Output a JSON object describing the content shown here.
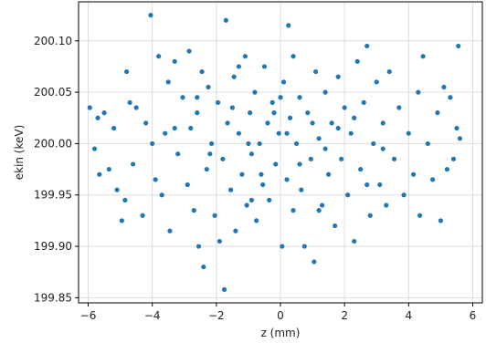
{
  "chart_data": {
    "type": "scatter",
    "title": "",
    "xlabel": "z (mm)",
    "ylabel": "ekin (keV)",
    "xlim": [
      -6.3,
      6.3
    ],
    "ylim": [
      199.845,
      200.138
    ],
    "grid": true,
    "x_ticks": [
      -6,
      -4,
      -2,
      0,
      2,
      4,
      6
    ],
    "x_tick_labels": [
      "−6",
      "−4",
      "−2",
      "0",
      "2",
      "4",
      "6"
    ],
    "y_ticks": [
      199.85,
      199.9,
      199.95,
      200.0,
      200.05,
      200.1
    ],
    "y_tick_labels": [
      "199.85",
      "199.90",
      "199.95",
      "200.00",
      "200.05",
      "200.10"
    ],
    "marker_color": "#1f77b4",
    "series": [
      {
        "points": [
          [
            -5.95,
            200.035
          ],
          [
            -5.8,
            199.995
          ],
          [
            -5.65,
            199.97
          ],
          [
            -5.7,
            200.025
          ],
          [
            -5.5,
            200.03
          ],
          [
            -5.35,
            199.975
          ],
          [
            -5.2,
            200.015
          ],
          [
            -5.1,
            199.955
          ],
          [
            -4.95,
            199.925
          ],
          [
            -4.85,
            199.945
          ],
          [
            -4.8,
            200.07
          ],
          [
            -4.7,
            200.04
          ],
          [
            -4.6,
            199.98
          ],
          [
            -4.5,
            200.035
          ],
          [
            -4.3,
            199.93
          ],
          [
            -4.2,
            200.02
          ],
          [
            -4.05,
            200.125
          ],
          [
            -4.0,
            200.0
          ],
          [
            -3.9,
            199.965
          ],
          [
            -3.8,
            200.085
          ],
          [
            -3.7,
            199.95
          ],
          [
            -3.6,
            200.01
          ],
          [
            -3.5,
            200.06
          ],
          [
            -3.45,
            199.915
          ],
          [
            -3.3,
            200.08
          ],
          [
            -3.2,
            199.99
          ],
          [
            -3.05,
            200.045
          ],
          [
            -2.9,
            199.96
          ],
          [
            -2.85,
            200.09
          ],
          [
            -2.8,
            200.015
          ],
          [
            -2.7,
            199.935
          ],
          [
            -2.6,
            200.03
          ],
          [
            -2.55,
            199.9
          ],
          [
            -2.45,
            200.07
          ],
          [
            -2.4,
            199.88
          ],
          [
            -2.3,
            199.975
          ],
          [
            -2.25,
            200.055
          ],
          [
            -2.15,
            200.0
          ],
          [
            -2.05,
            199.93
          ],
          [
            -1.95,
            200.04
          ],
          [
            -1.9,
            199.905
          ],
          [
            -1.8,
            199.985
          ],
          [
            -1.75,
            199.858
          ],
          [
            -1.7,
            200.12
          ],
          [
            -1.65,
            200.02
          ],
          [
            -1.55,
            199.955
          ],
          [
            -1.45,
            200.065
          ],
          [
            -1.4,
            199.915
          ],
          [
            -1.3,
            200.01
          ],
          [
            -1.2,
            199.97
          ],
          [
            -1.1,
            200.085
          ],
          [
            -1.05,
            199.94
          ],
          [
            -0.95,
            200.03
          ],
          [
            -0.9,
            199.99
          ],
          [
            -0.8,
            200.05
          ],
          [
            -0.75,
            199.925
          ],
          [
            -0.65,
            200.0
          ],
          [
            -0.55,
            199.96
          ],
          [
            -0.5,
            200.075
          ],
          [
            -0.4,
            200.02
          ],
          [
            -0.35,
            199.945
          ],
          [
            -0.25,
            200.04
          ],
          [
            -0.15,
            199.98
          ],
          [
            -0.05,
            200.01
          ],
          [
            0.05,
            199.9
          ],
          [
            0.1,
            200.06
          ],
          [
            0.2,
            199.965
          ],
          [
            0.25,
            200.115
          ],
          [
            0.3,
            200.025
          ],
          [
            0.4,
            199.935
          ],
          [
            0.5,
            200.0
          ],
          [
            0.6,
            200.045
          ],
          [
            0.65,
            199.955
          ],
          [
            0.75,
            199.9
          ],
          [
            0.85,
            200.03
          ],
          [
            0.95,
            199.985
          ],
          [
            1.05,
            199.885
          ],
          [
            1.1,
            200.07
          ],
          [
            1.2,
            200.005
          ],
          [
            1.3,
            199.94
          ],
          [
            1.4,
            200.05
          ],
          [
            1.5,
            199.97
          ],
          [
            1.6,
            200.02
          ],
          [
            1.7,
            199.92
          ],
          [
            1.8,
            200.065
          ],
          [
            1.9,
            199.985
          ],
          [
            2.0,
            200.035
          ],
          [
            2.1,
            199.95
          ],
          [
            2.2,
            200.01
          ],
          [
            2.3,
            199.905
          ],
          [
            2.4,
            200.08
          ],
          [
            2.5,
            199.975
          ],
          [
            2.6,
            200.04
          ],
          [
            2.7,
            200.095
          ],
          [
            2.8,
            199.93
          ],
          [
            2.9,
            200.0
          ],
          [
            3.0,
            200.06
          ],
          [
            3.1,
            199.96
          ],
          [
            3.2,
            200.02
          ],
          [
            3.3,
            199.94
          ],
          [
            3.4,
            200.07
          ],
          [
            3.55,
            199.985
          ],
          [
            3.7,
            200.035
          ],
          [
            3.85,
            199.95
          ],
          [
            4.0,
            200.01
          ],
          [
            4.15,
            199.97
          ],
          [
            4.3,
            200.05
          ],
          [
            4.35,
            199.93
          ],
          [
            4.45,
            200.085
          ],
          [
            4.6,
            200.0
          ],
          [
            4.75,
            199.965
          ],
          [
            4.9,
            200.03
          ],
          [
            5.0,
            199.925
          ],
          [
            5.1,
            200.055
          ],
          [
            5.2,
            199.975
          ],
          [
            5.3,
            200.045
          ],
          [
            5.4,
            199.985
          ],
          [
            5.5,
            200.015
          ],
          [
            5.55,
            200.095
          ],
          [
            5.6,
            200.005
          ],
          [
            -1.5,
            200.035
          ],
          [
            -1.0,
            200.0
          ],
          [
            -0.6,
            199.97
          ],
          [
            -0.2,
            200.03
          ],
          [
            0.2,
            200.01
          ],
          [
            0.6,
            199.98
          ],
          [
            1.0,
            200.02
          ],
          [
            1.4,
            199.995
          ],
          [
            1.8,
            200.015
          ],
          [
            -2.2,
            199.99
          ],
          [
            -1.3,
            200.075
          ],
          [
            0.0,
            200.045
          ],
          [
            1.2,
            199.935
          ],
          [
            2.3,
            200.025
          ],
          [
            -0.9,
            199.945
          ],
          [
            0.4,
            200.085
          ],
          [
            -2.6,
            200.045
          ],
          [
            2.7,
            199.96
          ],
          [
            -3.3,
            200.015
          ],
          [
            3.2,
            199.995
          ]
        ]
      }
    ]
  }
}
